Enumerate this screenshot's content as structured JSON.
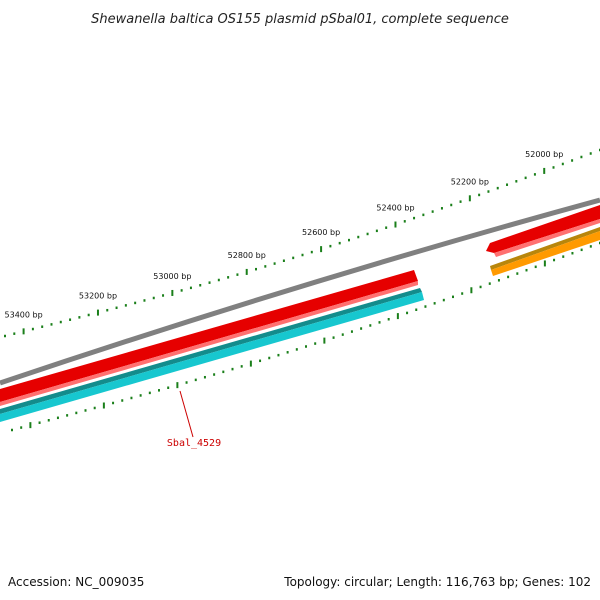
{
  "title": "Shewanella baltica OS155 plasmid pSbal01, complete sequence",
  "footer": {
    "accession": "Accession: NC_009035",
    "summary": "Topology: circular; Length: 116,763 bp; Genes: 102"
  },
  "ruler": {
    "labels": [
      "52000 bp",
      "52200 bp",
      "52400 bp",
      "52600 bp",
      "52800 bp",
      "53000 bp",
      "53200 bp",
      "53400 bp"
    ],
    "tick_color": "#1a7f1a"
  },
  "tracks": {
    "backbone": {
      "color": "#808080"
    },
    "forward": [
      {
        "name": "forward-gene-long",
        "color": "#e60000",
        "highlight": "#ff7070"
      },
      {
        "name": "forward-gene-right",
        "color": "#e60000",
        "highlight": "#ff7070"
      }
    ],
    "reverse": [
      {
        "name": "reverse-gene-long",
        "color": "#17c7cf",
        "dark": "#138c8c"
      },
      {
        "name": "reverse-gene-right",
        "color": "#ff9a00",
        "dark": "#b8860b"
      }
    ]
  },
  "gene_label": {
    "text": "Sbal_4529",
    "color": "#cc0000"
  }
}
